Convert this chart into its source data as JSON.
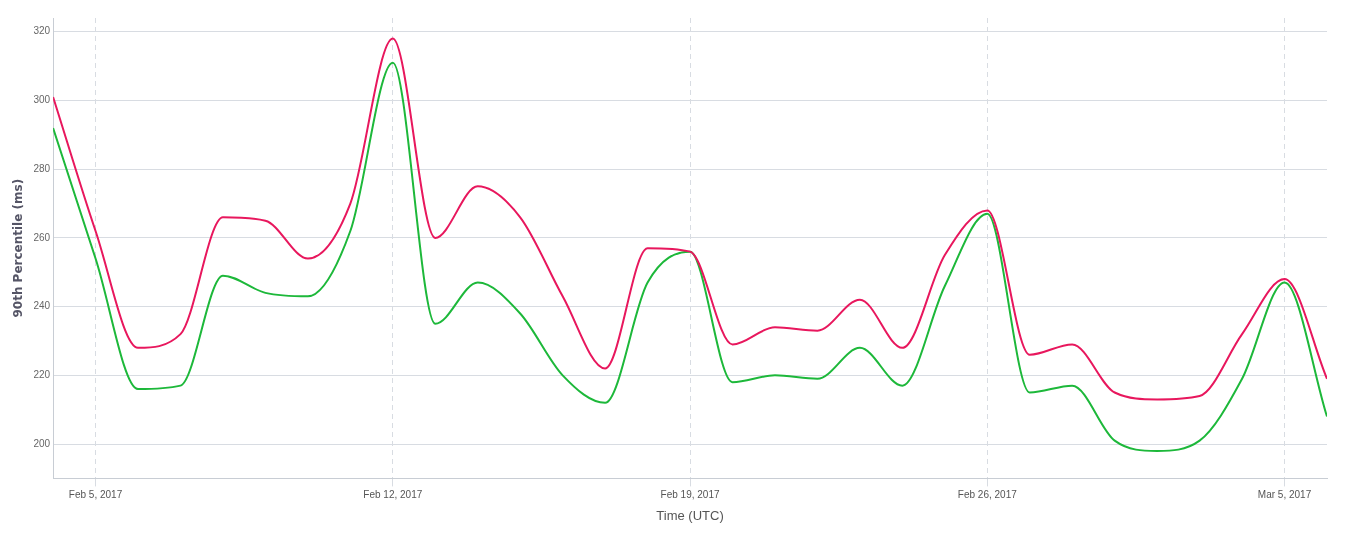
{
  "chart_data": {
    "type": "line",
    "xlabel": "Time (UTC)",
    "ylabel": "90th Percentile (ms)",
    "x": [
      "2017-02-04",
      "2017-02-05",
      "2017-02-06",
      "2017-02-07",
      "2017-02-08",
      "2017-02-09",
      "2017-02-10",
      "2017-02-11",
      "2017-02-12",
      "2017-02-13",
      "2017-02-14",
      "2017-02-15",
      "2017-02-16",
      "2017-02-17",
      "2017-02-18",
      "2017-02-19",
      "2017-02-20",
      "2017-02-21",
      "2017-02-22",
      "2017-02-23",
      "2017-02-24",
      "2017-02-25",
      "2017-02-26",
      "2017-02-27",
      "2017-02-28",
      "2017-03-01",
      "2017-03-02",
      "2017-03-03",
      "2017-03-04",
      "2017-03-05",
      "2017-03-06"
    ],
    "series": [
      {
        "color": "#e8175d",
        "values": [
          301,
          262,
          228,
          232,
          266,
          265,
          254,
          270,
          318,
          260,
          275,
          266,
          243,
          222,
          257,
          256,
          229,
          234,
          233,
          242,
          228,
          255,
          268,
          226,
          229,
          215,
          213,
          214,
          232,
          248,
          219
        ]
      },
      {
        "color": "#1db83a",
        "values": [
          292,
          254,
          216,
          217,
          249,
          244,
          243,
          262,
          311,
          235,
          247,
          238,
          220,
          212,
          247,
          256,
          218,
          220,
          219,
          228,
          217,
          246,
          267,
          215,
          217,
          201,
          198,
          201,
          219,
          247,
          208
        ]
      }
    ],
    "xlim": [
      "2017-02-04",
      "2017-03-06"
    ],
    "xticks": [
      {
        "value": "2017-02-05",
        "label": "Feb 5, 2017"
      },
      {
        "value": "2017-02-12",
        "label": "Feb 12, 2017"
      },
      {
        "value": "2017-02-19",
        "label": "Feb 19, 2017"
      },
      {
        "value": "2017-02-26",
        "label": "Feb 26, 2017"
      },
      {
        "value": "2017-03-05",
        "label": "Mar 5, 2017"
      }
    ],
    "ylim": [
      190,
      324
    ],
    "yticks": [
      200,
      220,
      240,
      260,
      280,
      300,
      320
    ],
    "grid": true,
    "legend": false,
    "marker": "none",
    "line_style": "solid"
  }
}
